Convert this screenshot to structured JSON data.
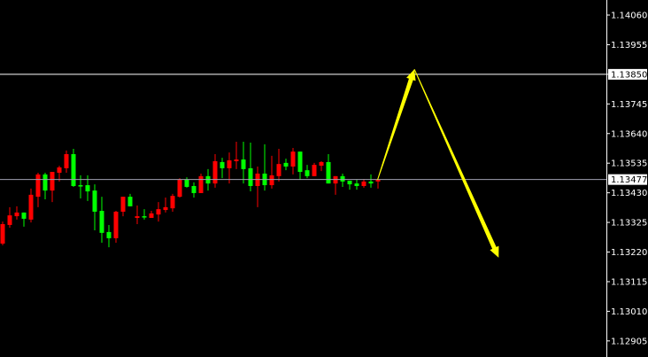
{
  "chart_data": {
    "type": "candlestick",
    "colors": {
      "background": "#000000",
      "bullish": "#ff0000",
      "bearish": "#00ff00",
      "axis": "#ffffff",
      "bid_line": "#a0a0b0",
      "level_line": "#ffffff",
      "arrow": "#ffff00"
    },
    "y_ticks": [
      "1.14060",
      "1.13955",
      "1.13850",
      "1.13745",
      "1.13640",
      "1.13535",
      "1.13430",
      "1.13325",
      "1.13220",
      "1.13115",
      "1.13010",
      "1.12905"
    ],
    "ylim": [
      1.1287,
      1.141
    ],
    "bid_price": "1.13477",
    "level_price": "1.13850",
    "candles": [
      [
        1.1325,
        1.13328,
        1.13244,
        1.13319
      ],
      [
        1.13316,
        1.13379,
        1.13306,
        1.1335
      ],
      [
        1.13347,
        1.13382,
        1.13335,
        1.1336
      ],
      [
        1.1336,
        1.1336,
        1.1331,
        1.13338
      ],
      [
        1.13335,
        1.13445,
        1.13325,
        1.13423
      ],
      [
        1.13416,
        1.13501,
        1.13379,
        1.13495
      ],
      [
        1.13495,
        1.13501,
        1.13407,
        1.13438
      ],
      [
        1.13438,
        1.13504,
        1.13397,
        1.13504
      ],
      [
        1.13501,
        1.13526,
        1.1347,
        1.1352
      ],
      [
        1.13517,
        1.1358,
        1.13501,
        1.13567
      ],
      [
        1.13567,
        1.13586,
        1.13451,
        1.13454
      ],
      [
        1.13457,
        1.13492,
        1.1341,
        1.13454
      ],
      [
        1.13457,
        1.13492,
        1.13401,
        1.13435
      ],
      [
        1.13438,
        1.1346,
        1.13297,
        1.13363
      ],
      [
        1.13366,
        1.13416,
        1.13253,
        1.13288
      ],
      [
        1.13291,
        1.13316,
        1.13237,
        1.13269
      ],
      [
        1.13269,
        1.13366,
        1.13253,
        1.13363
      ],
      [
        1.13363,
        1.13416,
        1.13347,
        1.13416
      ],
      [
        1.13416,
        1.13426,
        1.13382,
        1.13382
      ],
      [
        1.13341,
        1.13385,
        1.13319,
        1.13347
      ],
      [
        1.13347,
        1.13372,
        1.13335,
        1.13344
      ],
      [
        1.13341,
        1.13366,
        1.13341,
        1.13357
      ],
      [
        1.13353,
        1.13397,
        1.13328,
        1.13372
      ],
      [
        1.13369,
        1.13413,
        1.1336,
        1.13379
      ],
      [
        1.13375,
        1.13426,
        1.13363,
        1.13419
      ],
      [
        1.13416,
        1.13482,
        1.13413,
        1.13476
      ],
      [
        1.13476,
        1.13485,
        1.13448,
        1.13451
      ],
      [
        1.13454,
        1.13467,
        1.13413,
        1.13429
      ],
      [
        1.13429,
        1.13498,
        1.13429,
        1.13489
      ],
      [
        1.13489,
        1.13514,
        1.13438,
        1.13463
      ],
      [
        1.13463,
        1.13567,
        1.13448,
        1.13542
      ],
      [
        1.13539,
        1.13554,
        1.13482,
        1.13517
      ],
      [
        1.13517,
        1.13573,
        1.13463,
        1.13545
      ],
      [
        1.13542,
        1.13611,
        1.13514,
        1.13548
      ],
      [
        1.13548,
        1.13611,
        1.13463,
        1.13514
      ],
      [
        1.13517,
        1.13608,
        1.13435,
        1.13454
      ],
      [
        1.13454,
        1.13523,
        1.13379,
        1.13498
      ],
      [
        1.13498,
        1.13602,
        1.13438,
        1.13457
      ],
      [
        1.13457,
        1.13561,
        1.13445,
        1.13492
      ],
      [
        1.13489,
        1.13586,
        1.1347,
        1.13532
      ],
      [
        1.13536,
        1.13551,
        1.1351,
        1.13523
      ],
      [
        1.13523,
        1.13589,
        1.13495,
        1.13576
      ],
      [
        1.13576,
        1.13576,
        1.13476,
        1.13504
      ],
      [
        1.1351,
        1.13529,
        1.13482,
        1.13489
      ],
      [
        1.13489,
        1.13536,
        1.13489,
        1.13529
      ],
      [
        1.13526,
        1.13542,
        1.13507,
        1.13539
      ],
      [
        1.13539,
        1.13567,
        1.13463,
        1.13463
      ],
      [
        1.13463,
        1.13489,
        1.13423,
        1.13489
      ],
      [
        1.13489,
        1.13498,
        1.13451,
        1.1347
      ],
      [
        1.13473,
        1.13473,
        1.13441,
        1.1346
      ],
      [
        1.13463,
        1.13476,
        1.13441,
        1.13454
      ],
      [
        1.13454,
        1.13479,
        1.13448,
        1.1347
      ],
      [
        1.1347,
        1.13495,
        1.13448,
        1.13463
      ],
      [
        1.1347,
        1.13482,
        1.13445,
        1.13476
      ]
    ],
    "arrows": [
      {
        "from": [
          53,
          1.13476
        ],
        "to": [
          58.2,
          1.13868
        ]
      },
      {
        "from": [
          58.2,
          1.13868
        ],
        "to": [
          70.1,
          1.132
        ]
      }
    ]
  }
}
